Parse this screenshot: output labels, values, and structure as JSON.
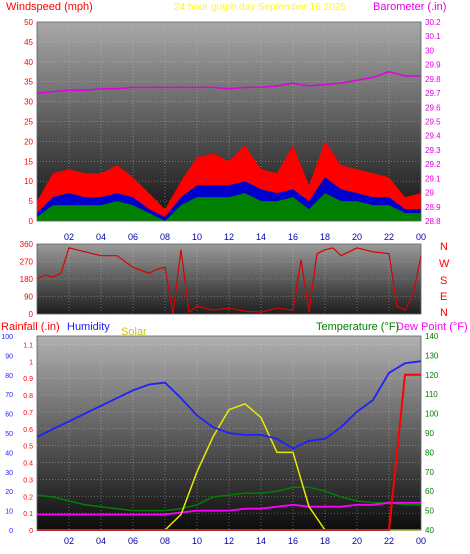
{
  "colors": {
    "windspeed": "#ff0000",
    "gust_band": "#0000cc",
    "avg_band": "#008000",
    "barometer": "#e000e0",
    "direction": "#dd0000",
    "rainfall": "#ff0000",
    "humidity": "#2020ff",
    "solar": "#e8e800",
    "temperature": "#008000",
    "dewpoint": "#ff00ff",
    "title": "#ffff00"
  },
  "header": {
    "windspeed_label": "Windspeed (mph)",
    "title": "24 hour graph day   September 16 2025",
    "barometer_label": "Barometer (.in)"
  },
  "direction_labels": [
    "N",
    "W",
    "S",
    "E",
    "N"
  ],
  "bottom_legend": {
    "rainfall": "Rainfall (.in)",
    "humidity": "Humidity",
    "solar": "Solar",
    "temperature": "Temperature (°F)",
    "dewpoint": "Dew Point (°F)"
  },
  "x_ticks": [
    "02",
    "04",
    "06",
    "08",
    "10",
    "12",
    "14",
    "16",
    "18",
    "20",
    "22",
    "00"
  ],
  "chart_data": [
    {
      "type": "area",
      "panel": "wind",
      "y_left_ticks": [
        "0",
        "5",
        "10",
        "15",
        "20",
        "25",
        "30",
        "35",
        "40",
        "45",
        "50"
      ],
      "y_right_ticks": [
        "28.8",
        "28.9",
        "29",
        "29.1",
        "29.2",
        "29.3",
        "29.4",
        "29.5",
        "29.6",
        "29.7",
        "29.8",
        "29.9",
        "30",
        "30.1",
        "30.2"
      ],
      "ylim": [
        0,
        50
      ],
      "ylim_right": [
        28.8,
        30.2
      ],
      "hours": [
        0,
        1,
        2,
        3,
        4,
        5,
        6,
        7,
        8,
        9,
        10,
        11,
        12,
        13,
        14,
        15,
        16,
        17,
        18,
        19,
        20,
        21,
        22,
        23,
        24
      ],
      "windspeed_max": [
        5,
        12,
        13,
        12,
        12,
        14,
        11,
        7,
        3,
        10,
        16,
        17,
        15,
        19,
        13,
        12,
        19,
        9,
        20,
        14,
        13,
        12,
        11,
        6,
        7
      ],
      "gust_band": [
        2,
        6,
        7,
        6,
        6,
        7,
        6,
        3,
        1,
        6,
        9,
        9,
        9,
        10,
        8,
        7,
        8,
        5,
        11,
        8,
        7,
        6,
        6,
        3,
        3
      ],
      "avg_band": [
        1,
        4,
        4,
        4,
        4,
        5,
        4,
        2,
        0,
        4,
        6,
        6,
        6,
        7,
        5,
        5,
        6,
        3,
        7,
        5,
        5,
        4,
        4,
        2,
        2
      ],
      "barometer": [
        29.7,
        29.71,
        29.72,
        29.72,
        29.73,
        29.73,
        29.74,
        29.74,
        29.74,
        29.74,
        29.74,
        29.74,
        29.73,
        29.74,
        29.74,
        29.75,
        29.77,
        29.75,
        29.76,
        29.77,
        29.79,
        29.81,
        29.85,
        29.82,
        29.82
      ]
    },
    {
      "type": "line",
      "panel": "direction",
      "y_ticks": [
        "0",
        "90",
        "180",
        "270",
        "360"
      ],
      "ylim": [
        0,
        360
      ],
      "hours": [
        0,
        0.5,
        1,
        1.5,
        2,
        3,
        4,
        5,
        6,
        7,
        7.5,
        8,
        8.5,
        9,
        9.5,
        10,
        11,
        12,
        13,
        14,
        15,
        16,
        16.5,
        17,
        17.5,
        18,
        18.5,
        19,
        20,
        21,
        22,
        22.5,
        23,
        23.5,
        24
      ],
      "direction": [
        180,
        200,
        190,
        210,
        340,
        320,
        300,
        300,
        240,
        210,
        230,
        240,
        0,
        330,
        10,
        40,
        20,
        30,
        15,
        10,
        30,
        20,
        280,
        10,
        310,
        330,
        340,
        300,
        340,
        320,
        310,
        40,
        20,
        100,
        300
      ]
    },
    {
      "type": "line",
      "panel": "climate",
      "y_left_ticks": [
        "0",
        "0.1",
        "0.2",
        "0.3",
        "0.4",
        "0.5",
        "0.6",
        "0.7",
        "0.8",
        "0.9",
        "1",
        "1.1"
      ],
      "y_humidity_ticks": [
        "0",
        "10",
        "20",
        "30",
        "40",
        "50",
        "60",
        "70",
        "80",
        "90",
        "100"
      ],
      "y_right_ticks": [
        "40",
        "50",
        "60",
        "70",
        "80",
        "90",
        "100",
        "110",
        "120",
        "130",
        "140"
      ],
      "ylim_rain": [
        0,
        1.15
      ],
      "ylim_humidity": [
        0,
        100
      ],
      "ylim_temp": [
        40,
        140
      ],
      "hours": [
        0,
        1,
        2,
        3,
        4,
        5,
        6,
        7,
        8,
        9,
        10,
        11,
        12,
        13,
        14,
        15,
        16,
        17,
        18,
        19,
        20,
        21,
        22,
        23,
        24
      ],
      "humidity": [
        48,
        52,
        56,
        60,
        64,
        68,
        72,
        75,
        76,
        68,
        59,
        53,
        50,
        49,
        49,
        47,
        42,
        46,
        47,
        53,
        61,
        67,
        81,
        86,
        87
      ],
      "temperature": [
        58,
        57,
        55,
        53,
        52,
        51,
        50,
        50,
        50,
        51,
        53,
        57,
        58,
        59,
        59,
        60,
        62,
        62,
        60,
        57,
        55,
        54,
        54,
        53,
        53
      ],
      "dewpoint": [
        48,
        48,
        48,
        48,
        48,
        48,
        48,
        48,
        48,
        49,
        50,
        50,
        50,
        51,
        51,
        52,
        53,
        52,
        52,
        52,
        53,
        53,
        54,
        54,
        54
      ],
      "solar_pct": [
        0,
        0,
        0,
        0,
        0,
        0,
        0,
        0,
        0,
        8,
        30,
        48,
        62,
        65,
        58,
        40,
        40,
        12,
        0,
        0,
        0,
        0,
        0,
        0,
        0
      ],
      "rainfall": [
        0,
        0,
        0,
        0,
        0,
        0,
        0,
        0,
        0,
        0,
        0,
        0,
        0,
        0,
        0,
        0,
        0,
        0,
        0,
        0,
        0,
        0,
        0,
        0.92,
        0.92
      ]
    }
  ]
}
